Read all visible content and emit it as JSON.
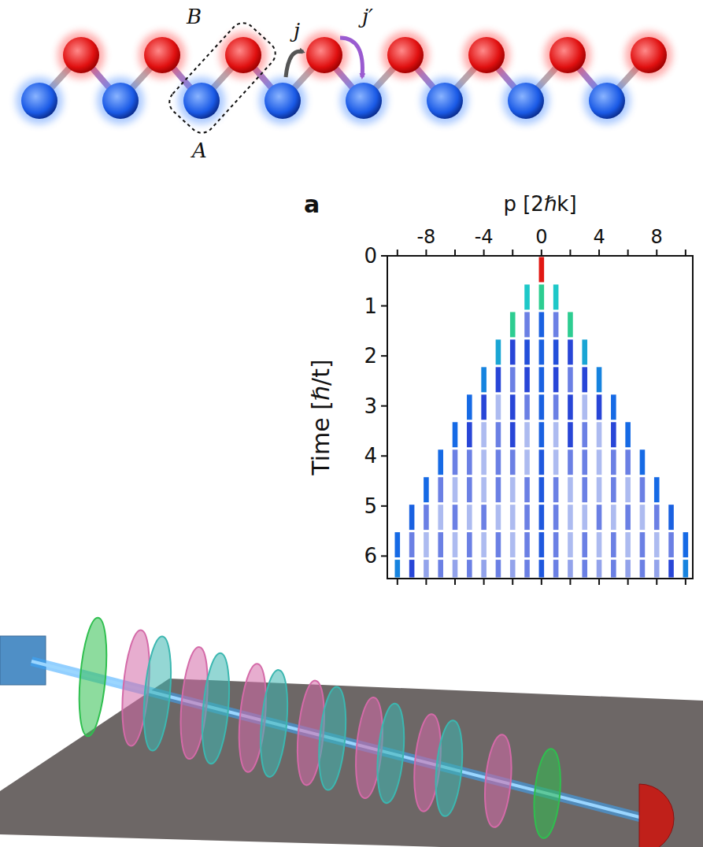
{
  "diagram": {
    "chain": {
      "cells": 8,
      "box_top_label": "B",
      "box_bottom_label": "A",
      "intra_hopping": "j",
      "inter_hopping": "j′"
    }
  },
  "chart_data": {
    "type": "heatmap",
    "panel": "a",
    "x_label": "p [2ℏk]",
    "y_label": "Time [ℏ/t]",
    "xlim": [
      -10.7,
      10.5
    ],
    "xticks": [
      -8,
      -4,
      0,
      4,
      8
    ],
    "xticks_minor": [
      -10,
      -6,
      -2,
      2,
      6,
      10
    ],
    "ylim": [
      0,
      6.45
    ],
    "yticks": [
      0,
      1,
      2,
      3,
      4,
      5,
      6
    ],
    "p": [
      -10,
      -9,
      -8,
      -7,
      -6,
      -5,
      -4,
      -3,
      -2,
      -1,
      0,
      1,
      2,
      3,
      4,
      5,
      6,
      7,
      8,
      9,
      10
    ],
    "times": [
      0,
      0.55,
      1.1,
      1.65,
      2.2,
      2.75,
      3.3,
      3.85,
      4.4,
      4.95,
      5.5,
      6.05,
      6.45
    ],
    "cells": [
      [
        0,
        0,
        0,
        0,
        0,
        0,
        0,
        0,
        0,
        0,
        1.0,
        0,
        0,
        0,
        0,
        0,
        0,
        0,
        0,
        0,
        0
      ],
      [
        0,
        0,
        0,
        0,
        0,
        0,
        0,
        0,
        0,
        0.55,
        0.6,
        0.55,
        0,
        0,
        0,
        0,
        0,
        0,
        0,
        0,
        0
      ],
      [
        0,
        0,
        0,
        0,
        0,
        0,
        0,
        0,
        0.6,
        0.15,
        0.35,
        0.15,
        0.6,
        0,
        0,
        0,
        0,
        0,
        0,
        0,
        0
      ],
      [
        0,
        0,
        0,
        0,
        0,
        0,
        0,
        0.5,
        0.2,
        0.25,
        0.35,
        0.25,
        0.2,
        0.5,
        0,
        0,
        0,
        0,
        0,
        0,
        0
      ],
      [
        0,
        0,
        0,
        0,
        0,
        0,
        0.45,
        0.2,
        0.15,
        0.2,
        0.35,
        0.2,
        0.15,
        0.2,
        0.45,
        0,
        0,
        0,
        0,
        0,
        0
      ],
      [
        0,
        0,
        0,
        0,
        0,
        0.4,
        0.2,
        0.1,
        0.2,
        0.15,
        0.35,
        0.15,
        0.2,
        0.1,
        0.2,
        0.4,
        0,
        0,
        0,
        0,
        0
      ],
      [
        0,
        0,
        0,
        0,
        0.4,
        0.2,
        0.1,
        0.15,
        0.2,
        0.1,
        0.35,
        0.1,
        0.2,
        0.15,
        0.1,
        0.2,
        0.4,
        0,
        0,
        0,
        0
      ],
      [
        0,
        0,
        0,
        0.4,
        0.15,
        0.15,
        0.1,
        0.15,
        0.15,
        0.1,
        0.3,
        0.1,
        0.15,
        0.15,
        0.1,
        0.15,
        0.15,
        0.4,
        0,
        0,
        0
      ],
      [
        0,
        0,
        0.4,
        0.15,
        0.1,
        0.15,
        0.1,
        0.15,
        0.1,
        0.15,
        0.3,
        0.15,
        0.1,
        0.15,
        0.1,
        0.15,
        0.1,
        0.15,
        0.4,
        0,
        0
      ],
      [
        0,
        0.35,
        0.15,
        0.1,
        0.15,
        0.1,
        0.15,
        0.1,
        0.1,
        0.15,
        0.3,
        0.15,
        0.1,
        0.1,
        0.15,
        0.1,
        0.15,
        0.1,
        0.15,
        0.35,
        0
      ],
      [
        0.4,
        0.15,
        0.1,
        0.15,
        0.1,
        0.15,
        0.1,
        0.15,
        0.1,
        0.15,
        0.3,
        0.15,
        0.1,
        0.15,
        0.1,
        0.15,
        0.1,
        0.15,
        0.1,
        0.15,
        0.4
      ],
      [
        0.45,
        0.2,
        0.12,
        0.15,
        0.12,
        0.15,
        0.12,
        0.15,
        0.12,
        0.15,
        0.3,
        0.15,
        0.12,
        0.15,
        0.12,
        0.15,
        0.12,
        0.15,
        0.12,
        0.2,
        0.45
      ]
    ]
  }
}
